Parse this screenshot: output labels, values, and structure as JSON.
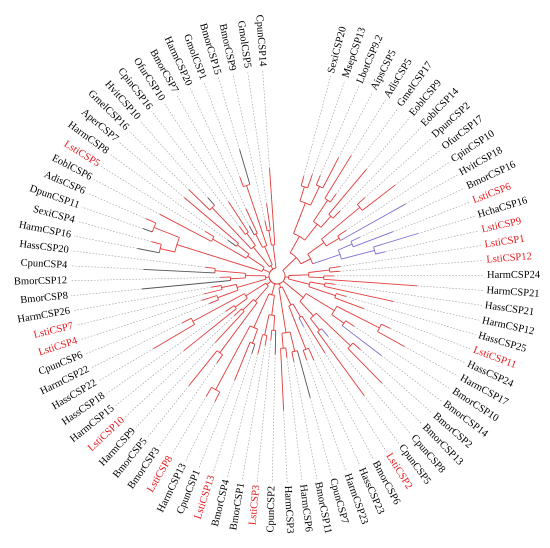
{
  "tree": {
    "colors": {
      "highlight": "#e8191c",
      "normal": "#000000",
      "branch_red": "#e33b3b",
      "branch_purple": "#7b6fd0",
      "branch_grey": "#555555",
      "guide": "#9a9a9a"
    },
    "leaves": [
      {
        "label": "SexiCSP20",
        "hl": false
      },
      {
        "label": "MsepCSP13",
        "hl": false
      },
      {
        "label": "LbotCSP9.2",
        "hl": false
      },
      {
        "label": "AipsCSP5",
        "hl": false
      },
      {
        "label": "AdisCSP5",
        "hl": false
      },
      {
        "label": "GmelCSP17",
        "hl": false
      },
      {
        "label": "EoblCSP9",
        "hl": false
      },
      {
        "label": "EoblCSP14",
        "hl": false
      },
      {
        "label": "DpunCSP2",
        "hl": false
      },
      {
        "label": "OfurCSP17",
        "hl": false
      },
      {
        "label": "CpinCSP10",
        "hl": false
      },
      {
        "label": "HvitCSP18",
        "hl": false
      },
      {
        "label": "BmorCSP16",
        "hl": false
      },
      {
        "label": "LstiCSP6",
        "hl": true
      },
      {
        "label": "HchaCSP16",
        "hl": false
      },
      {
        "label": "LstiCSP9",
        "hl": true
      },
      {
        "label": "LstiCSP1",
        "hl": true
      },
      {
        "label": "LstiCSP12",
        "hl": true
      },
      {
        "label": "HarmCSP24",
        "hl": false
      },
      {
        "label": "HarmCSP21",
        "hl": false
      },
      {
        "label": "HassCSP21",
        "hl": false
      },
      {
        "label": "HarmCSP12",
        "hl": false
      },
      {
        "label": "HassCSP25",
        "hl": false
      },
      {
        "label": "LstiCSP11",
        "hl": true
      },
      {
        "label": "HassCSP24",
        "hl": false
      },
      {
        "label": "HarmCSP17",
        "hl": false
      },
      {
        "label": "BmorCSP10",
        "hl": false
      },
      {
        "label": "BmorCSP14",
        "hl": false
      },
      {
        "label": "BmorCSP2",
        "hl": false
      },
      {
        "label": "BmorCSP13",
        "hl": false
      },
      {
        "label": "CpunCSP8",
        "hl": false
      },
      {
        "label": "CpunCSP5",
        "hl": false
      },
      {
        "label": "LstiCSP2",
        "hl": true
      },
      {
        "label": "BmorCSP6",
        "hl": false
      },
      {
        "label": "HassCSP23",
        "hl": false
      },
      {
        "label": "HarmCSP23",
        "hl": false
      },
      {
        "label": "CpunCSP7",
        "hl": false
      },
      {
        "label": "BmorCSP11",
        "hl": false
      },
      {
        "label": "HarmCSP6",
        "hl": false
      },
      {
        "label": "HarmCSP3",
        "hl": false
      },
      {
        "label": "CpunCSP2",
        "hl": false
      },
      {
        "label": "LstiCSP3",
        "hl": true
      },
      {
        "label": "BmorCSP1",
        "hl": false
      },
      {
        "label": "BmorCSP4",
        "hl": false
      },
      {
        "label": "LstiCSP13",
        "hl": true
      },
      {
        "label": "CpunCSP1",
        "hl": false
      },
      {
        "label": "HarmCSP13",
        "hl": false
      },
      {
        "label": "LstiCSP8",
        "hl": true
      },
      {
        "label": "BmorCSP3",
        "hl": false
      },
      {
        "label": "BmorCSP5",
        "hl": false
      },
      {
        "label": "HarmCSP9",
        "hl": false
      },
      {
        "label": "LstiCSP10",
        "hl": true
      },
      {
        "label": "HarmCSP15",
        "hl": false
      },
      {
        "label": "HassCSP18",
        "hl": false
      },
      {
        "label": "HassCSP22",
        "hl": false
      },
      {
        "label": "HarmCSP22",
        "hl": false
      },
      {
        "label": "CpunCSP6",
        "hl": false
      },
      {
        "label": "LstiCSP4",
        "hl": true
      },
      {
        "label": "LstiCSP7",
        "hl": true
      },
      {
        "label": "HarmCSP26",
        "hl": false
      },
      {
        "label": "BmorCSP8",
        "hl": false
      },
      {
        "label": "BmorCSP12",
        "hl": false
      },
      {
        "label": "CpunCSP4",
        "hl": false
      },
      {
        "label": "HassCSP20",
        "hl": false
      },
      {
        "label": "HarmCSP16",
        "hl": false
      },
      {
        "label": "SexiCSP4",
        "hl": false
      },
      {
        "label": "DpunCSP11",
        "hl": false
      },
      {
        "label": "AdisCSP6",
        "hl": false
      },
      {
        "label": "EoblCSP6",
        "hl": false
      },
      {
        "label": "LstiCSP5",
        "hl": true
      },
      {
        "label": "HarmCSP8",
        "hl": false
      },
      {
        "label": "AperCSP7",
        "hl": false
      },
      {
        "label": "GmelCSP16",
        "hl": false
      },
      {
        "label": "HvitCSP10",
        "hl": false
      },
      {
        "label": "CpinCSP16",
        "hl": false
      },
      {
        "label": "OfurCSP10",
        "hl": false
      },
      {
        "label": "BmorCSP7",
        "hl": false
      },
      {
        "label": "HarmCSP20",
        "hl": false
      },
      {
        "label": "GmolCSP1",
        "hl": false
      },
      {
        "label": "BmorCSP15",
        "hl": false
      },
      {
        "label": "BmorCSP9",
        "hl": false
      },
      {
        "label": "GmolCSP5",
        "hl": false
      },
      {
        "label": "CpunCSP14",
        "hl": false
      }
    ]
  }
}
